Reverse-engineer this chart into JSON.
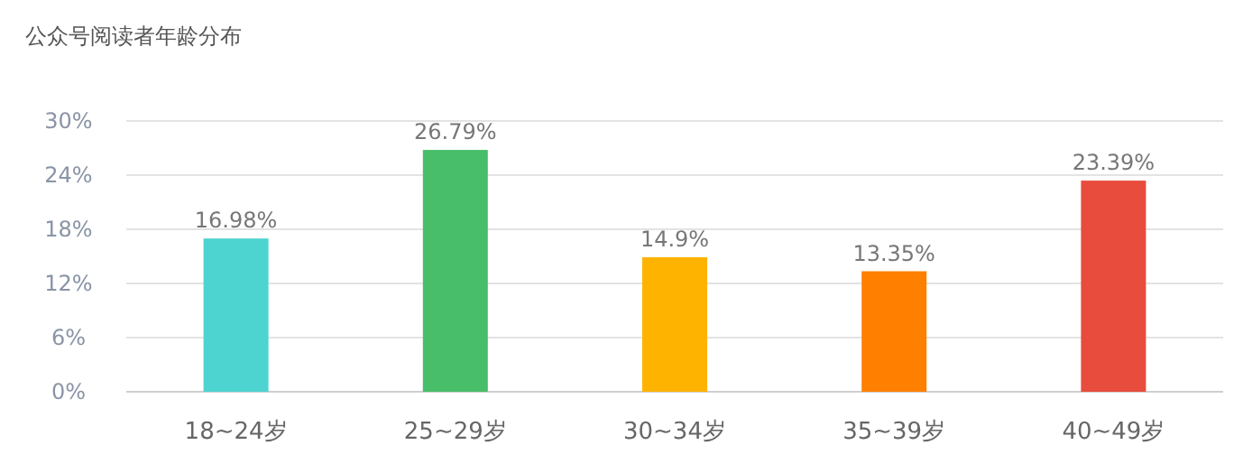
{
  "chart_data": {
    "type": "bar",
    "title": "公众号阅读者年龄分布",
    "categories": [
      "18~24岁",
      "25~29岁",
      "30~34岁",
      "35~39岁",
      "40~49岁"
    ],
    "values": [
      16.98,
      26.79,
      14.9,
      13.35,
      23.39
    ],
    "colors": [
      "#4dd4d0",
      "#48bd6a",
      "#fdb300",
      "#ff7f00",
      "#e84c3d"
    ],
    "value_labels": [
      "16.98%",
      "26.79%",
      "14.9%",
      "13.35%",
      "23.39%"
    ],
    "ylim": [
      0,
      30
    ],
    "yticks": [
      {
        "value": 0,
        "label": "0%"
      },
      {
        "value": 6,
        "label": "6%"
      },
      {
        "value": 12,
        "label": "12%"
      },
      {
        "value": 18,
        "label": "18%"
      },
      {
        "value": 24,
        "label": "24%"
      },
      {
        "value": 30,
        "label": "30%"
      }
    ],
    "grid": "y"
  }
}
